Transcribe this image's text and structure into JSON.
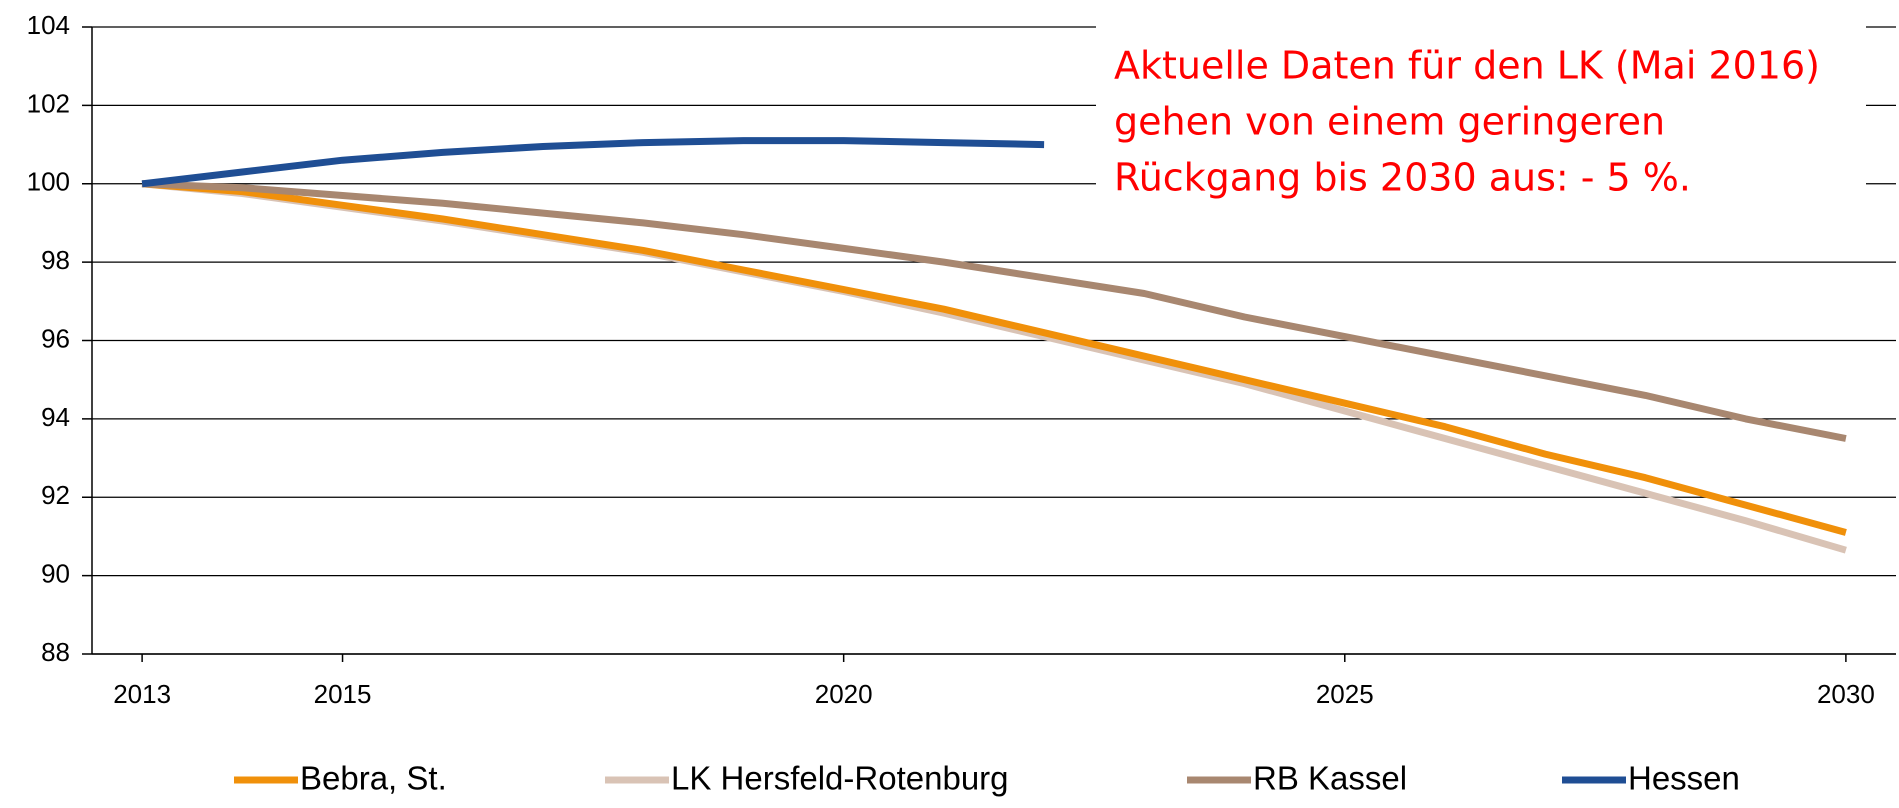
{
  "chart_data": {
    "type": "line",
    "x": [
      2013,
      2014,
      2015,
      2016,
      2017,
      2018,
      2019,
      2020,
      2021,
      2022,
      2023,
      2024,
      2025,
      2026,
      2027,
      2028,
      2029,
      2030
    ],
    "series": [
      {
        "name": "Bebra, St.",
        "color": "#f0900a",
        "values": [
          100,
          99.8,
          99.45,
          99.1,
          98.7,
          98.3,
          97.8,
          97.3,
          96.8,
          96.2,
          95.6,
          95.0,
          94.4,
          93.8,
          93.1,
          92.5,
          91.8,
          91.1
        ]
      },
      {
        "name": "LK Hersfeld-Rotenburg",
        "color": "#d9c3b5",
        "values": [
          100,
          99.75,
          99.4,
          99.05,
          98.65,
          98.25,
          97.75,
          97.25,
          96.7,
          96.1,
          95.5,
          94.9,
          94.2,
          93.5,
          92.8,
          92.1,
          91.4,
          90.65
        ]
      },
      {
        "name": "RB Kassel",
        "color": "#a88770",
        "values": [
          100,
          99.9,
          99.7,
          99.5,
          99.25,
          99.0,
          98.7,
          98.35,
          98.0,
          97.6,
          97.2,
          96.6,
          96.1,
          95.6,
          95.1,
          94.6,
          94.0,
          93.5
        ]
      },
      {
        "name": "Hessen",
        "color": "#1f4e94",
        "values": [
          100,
          100.3,
          100.6,
          100.8,
          100.95,
          101.05,
          101.1,
          101.1,
          101.05,
          101.0,
          null,
          null,
          null,
          null,
          null,
          null,
          null,
          null
        ]
      }
    ],
    "xlim": [
      2012.5,
      2030.5
    ],
    "xticks": [
      2013,
      2015,
      2020,
      2025,
      2030
    ],
    "ylim": [
      88,
      104
    ],
    "yticks": [
      88,
      90,
      92,
      94,
      96,
      98,
      100,
      102,
      104
    ],
    "grid": true,
    "annotation": [
      "Aktuelle Daten für den LK (Mai 2016)",
      "gehen von einem geringeren",
      "Rückgang bis 2030 aus: - 5 %."
    ]
  }
}
